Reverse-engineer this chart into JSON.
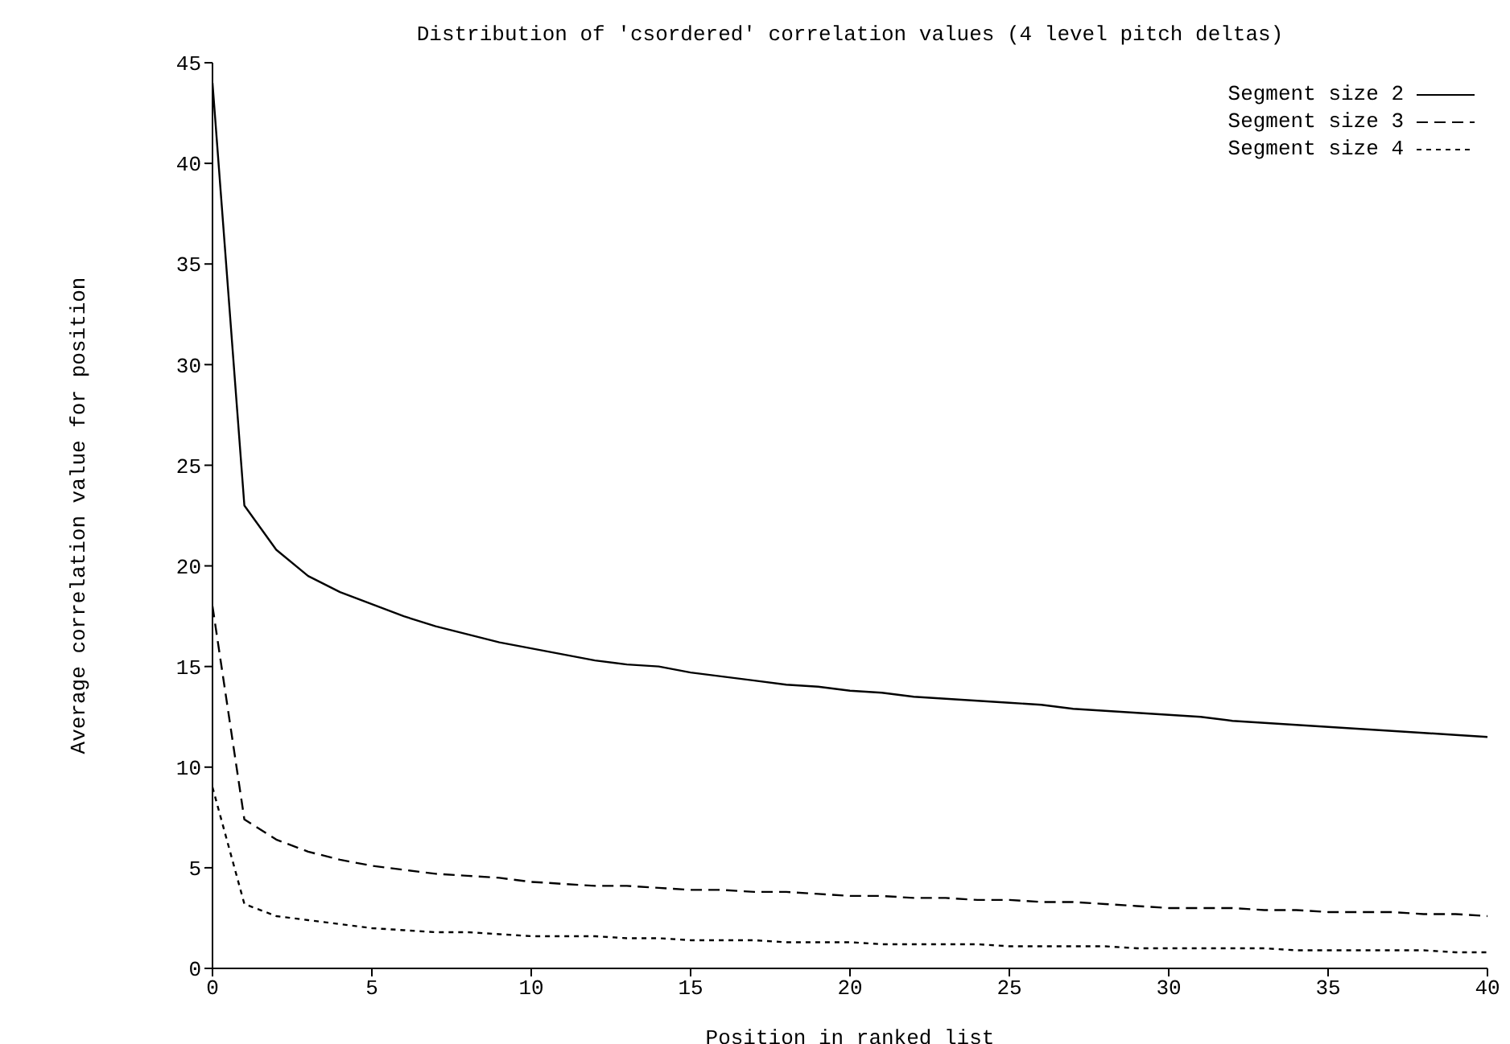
{
  "chart_data": {
    "type": "line",
    "title": "Distribution of 'csordered' correlation values (4 level pitch deltas)",
    "xlabel": "Position in ranked list",
    "ylabel": "Average correlation value for position",
    "x": [
      0,
      1,
      2,
      3,
      4,
      5,
      6,
      7,
      8,
      9,
      10,
      11,
      12,
      13,
      14,
      15,
      16,
      17,
      18,
      19,
      20,
      21,
      22,
      23,
      24,
      25,
      26,
      27,
      28,
      29,
      30,
      31,
      32,
      33,
      34,
      35,
      36,
      37,
      38,
      39,
      40
    ],
    "series": [
      {
        "name": "Segment size 2",
        "color": "#000000",
        "line_style": "solid",
        "values": [
          44,
          23,
          20.8,
          19.5,
          18.7,
          18.1,
          17.5,
          17,
          16.6,
          16.2,
          15.9,
          15.6,
          15.3,
          15.1,
          15,
          14.7,
          14.5,
          14.3,
          14.1,
          14,
          13.8,
          13.7,
          13.5,
          13.4,
          13.3,
          13.2,
          13.1,
          12.9,
          12.8,
          12.7,
          12.6,
          12.5,
          12.3,
          12.2,
          12.1,
          12,
          11.9,
          11.8,
          11.7,
          11.6,
          11.5
        ]
      },
      {
        "name": "Segment size 3",
        "color": "#000000",
        "line_style": "dashed",
        "values": [
          18,
          7.4,
          6.4,
          5.8,
          5.4,
          5.1,
          4.9,
          4.7,
          4.6,
          4.5,
          4.3,
          4.2,
          4.1,
          4.1,
          4,
          3.9,
          3.9,
          3.8,
          3.8,
          3.7,
          3.6,
          3.6,
          3.5,
          3.5,
          3.4,
          3.4,
          3.3,
          3.3,
          3.2,
          3.1,
          3,
          3,
          3,
          2.9,
          2.9,
          2.8,
          2.8,
          2.8,
          2.7,
          2.7,
          2.6
        ]
      },
      {
        "name": "Segment size 4",
        "color": "#000000",
        "line_style": "dotted",
        "values": [
          9,
          3.2,
          2.6,
          2.4,
          2.2,
          2,
          1.9,
          1.8,
          1.8,
          1.7,
          1.6,
          1.6,
          1.6,
          1.5,
          1.5,
          1.4,
          1.4,
          1.4,
          1.3,
          1.3,
          1.3,
          1.2,
          1.2,
          1.2,
          1.2,
          1.1,
          1.1,
          1.1,
          1.1,
          1,
          1,
          1,
          1,
          1,
          0.9,
          0.9,
          0.9,
          0.9,
          0.9,
          0.8,
          0.8
        ]
      }
    ],
    "xlim": [
      0,
      40
    ],
    "xticks": [
      0,
      5,
      10,
      15,
      20,
      25,
      30,
      35,
      40
    ],
    "ylim": [
      0,
      45
    ],
    "yticks": [
      0,
      5,
      10,
      15,
      20,
      25,
      30,
      35,
      40,
      45
    ],
    "grid": false,
    "legend": "top right",
    "marker": "none"
  }
}
